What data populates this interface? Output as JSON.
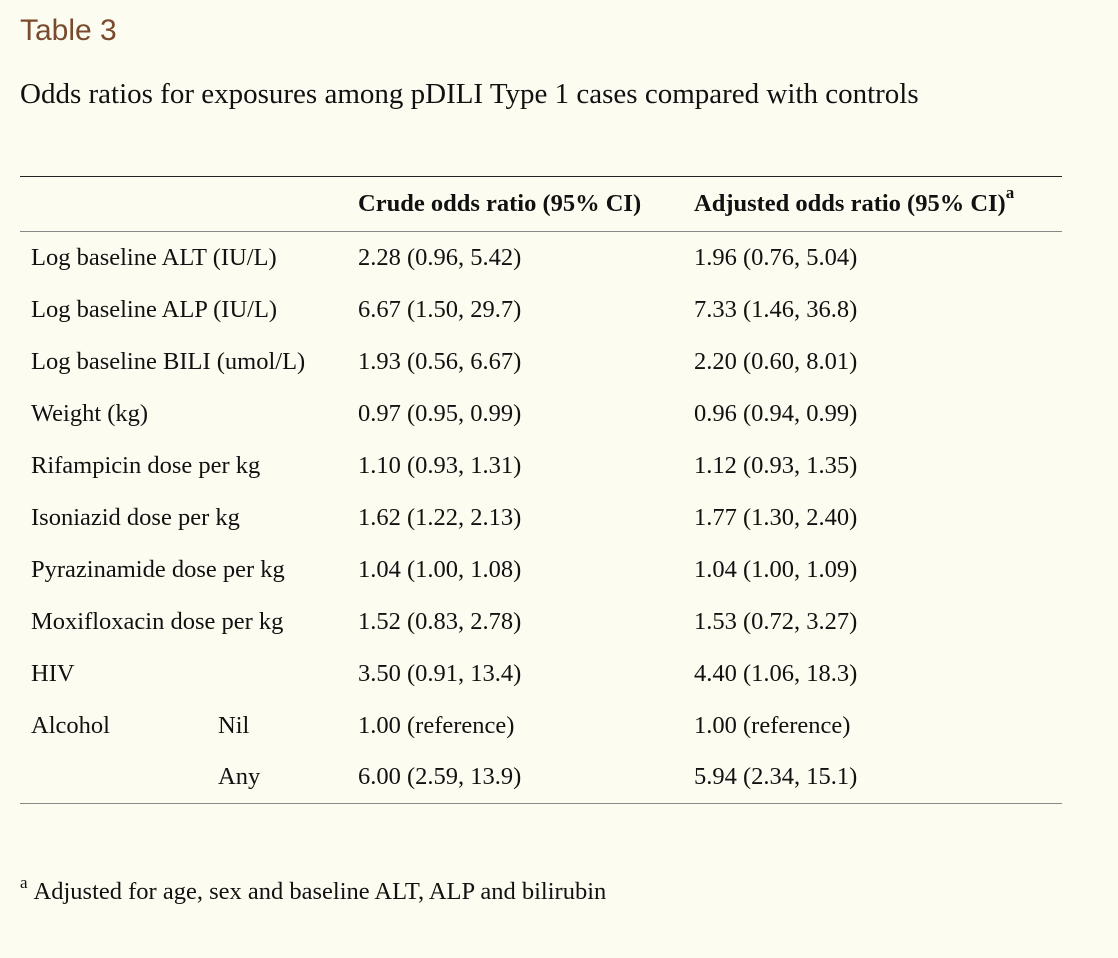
{
  "table_label": "Table 3",
  "caption": "Odds ratios for exposures among pDILI Type 1 cases compared with controls",
  "table": {
    "headers": {
      "crude": "Crude odds ratio (95% CI)",
      "adjusted": "Adjusted odds ratio (95% CI)",
      "adjusted_note_marker": "a"
    },
    "rows": [
      {
        "label": "Log baseline ALT (IU/L)",
        "sub": "",
        "crude": "2.28 (0.96, 5.42)",
        "adjusted": "1.96 (0.76, 5.04)"
      },
      {
        "label": "Log baseline ALP (IU/L)",
        "sub": "",
        "crude": "6.67 (1.50, 29.7)",
        "adjusted": "7.33 (1.46, 36.8)"
      },
      {
        "label": "Log baseline BILI (umol/L)",
        "sub": "",
        "crude": "1.93 (0.56, 6.67)",
        "adjusted": "2.20 (0.60, 8.01)"
      },
      {
        "label": "Weight (kg)",
        "sub": "",
        "crude": "0.97 (0.95, 0.99)",
        "adjusted": "0.96 (0.94, 0.99)"
      },
      {
        "label": "Rifampicin dose per kg",
        "sub": "",
        "crude": "1.10 (0.93, 1.31)",
        "adjusted": "1.12 (0.93, 1.35)"
      },
      {
        "label": "Isoniazid dose per kg",
        "sub": "",
        "crude": "1.62 (1.22, 2.13)",
        "adjusted": "1.77 (1.30, 2.40)"
      },
      {
        "label": "Pyrazinamide dose per kg",
        "sub": "",
        "crude": "1.04 (1.00, 1.08)",
        "adjusted": "1.04 (1.00, 1.09)"
      },
      {
        "label": "Moxifloxacin dose per kg",
        "sub": "",
        "crude": "1.52 (0.83, 2.78)",
        "adjusted": "1.53 (0.72, 3.27)"
      },
      {
        "label": "HIV",
        "sub": "",
        "crude": "3.50 (0.91, 13.4)",
        "adjusted": "4.40 (1.06, 18.3)"
      },
      {
        "label": "Alcohol",
        "sub": "Nil",
        "crude": "1.00 (reference)",
        "adjusted": "1.00 (reference)"
      },
      {
        "label": "",
        "sub": "Any",
        "crude": "6.00 (2.59, 13.9)",
        "adjusted": "5.94 (2.34, 15.1)"
      }
    ]
  },
  "footnote": {
    "marker": "a",
    "text": "Adjusted for age, sex and baseline ALT, ALP and bilirubin"
  }
}
